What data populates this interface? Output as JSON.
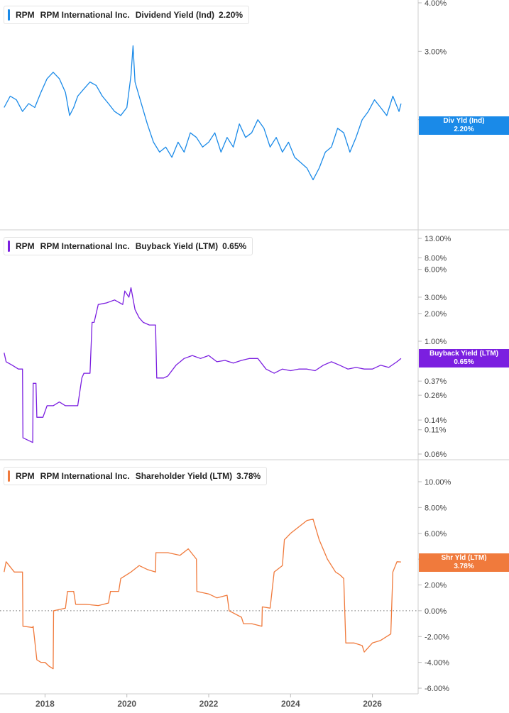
{
  "chart_data": [
    {
      "type": "line",
      "panel": "dividend",
      "ticker": "RPM",
      "company": "RPM International Inc.",
      "metric": "Dividend Yield (Ind)",
      "current_label": "2.20%",
      "tag_line1": "Div Yld (Ind)",
      "tag_line2": "2.20%",
      "color": "#1a8ae8",
      "y_scale": "log",
      "y_ticks": [
        {
          "v": 4.0,
          "label": "4.00%"
        },
        {
          "v": 3.0,
          "label": "3.00%"
        },
        {
          "v": 2.0,
          "label": "2.00%"
        }
      ],
      "ylim": [
        1.2,
        4.0
      ],
      "x": [
        2017.0,
        2017.15,
        2017.3,
        2017.45,
        2017.6,
        2017.75,
        2017.9,
        2018.05,
        2018.2,
        2018.35,
        2018.5,
        2018.6,
        2018.7,
        2018.8,
        2018.95,
        2019.1,
        2019.25,
        2019.4,
        2019.55,
        2019.7,
        2019.85,
        2020.0,
        2020.1,
        2020.15,
        2020.2,
        2020.3,
        2020.5,
        2020.65,
        2020.8,
        2020.95,
        2021.1,
        2021.25,
        2021.4,
        2021.55,
        2021.7,
        2021.85,
        2022.0,
        2022.15,
        2022.3,
        2022.45,
        2022.6,
        2022.75,
        2022.9,
        2023.05,
        2023.2,
        2023.35,
        2023.5,
        2023.65,
        2023.8,
        2023.95,
        2024.1,
        2024.25,
        2024.4,
        2024.55,
        2024.7,
        2024.85,
        2025.0,
        2025.15,
        2025.3,
        2025.45,
        2025.6,
        2025.75,
        2025.9,
        2026.05,
        2026.2,
        2026.35,
        2026.5,
        2026.65,
        2026.7
      ],
      "y": [
        2.15,
        2.3,
        2.25,
        2.1,
        2.2,
        2.15,
        2.35,
        2.55,
        2.65,
        2.55,
        2.35,
        2.05,
        2.15,
        2.3,
        2.4,
        2.5,
        2.45,
        2.3,
        2.2,
        2.1,
        2.05,
        2.15,
        2.6,
        3.1,
        2.5,
        2.3,
        1.95,
        1.75,
        1.65,
        1.7,
        1.6,
        1.75,
        1.65,
        1.85,
        1.8,
        1.7,
        1.75,
        1.85,
        1.65,
        1.8,
        1.7,
        1.95,
        1.8,
        1.85,
        2.0,
        1.9,
        1.7,
        1.8,
        1.65,
        1.75,
        1.6,
        1.55,
        1.5,
        1.4,
        1.5,
        1.65,
        1.7,
        1.9,
        1.85,
        1.65,
        1.8,
        2.0,
        2.1,
        2.25,
        2.15,
        2.05,
        2.3,
        2.1,
        2.2
      ]
    },
    {
      "type": "line",
      "panel": "buyback",
      "ticker": "RPM",
      "company": "RPM International Inc.",
      "metric": "Buyback Yield (LTM)",
      "current_label": "0.65%",
      "tag_line1": "Buyback Yield (LTM)",
      "tag_line2": "0.65%",
      "color": "#7b1fe0",
      "y_scale": "log",
      "y_ticks": [
        {
          "v": 13.0,
          "label": "13.00%"
        },
        {
          "v": 8.0,
          "label": "8.00%"
        },
        {
          "v": 6.0,
          "label": "6.00%"
        },
        {
          "v": 3.0,
          "label": "3.00%"
        },
        {
          "v": 2.0,
          "label": "2.00%"
        },
        {
          "v": 1.0,
          "label": "1.00%"
        },
        {
          "v": 0.37,
          "label": "0.37%"
        },
        {
          "v": 0.26,
          "label": "0.26%"
        },
        {
          "v": 0.14,
          "label": "0.14%"
        },
        {
          "v": 0.11,
          "label": "0.11%"
        },
        {
          "v": 0.06,
          "label": "0.06%"
        }
      ],
      "ylim": [
        0.06,
        13.0
      ],
      "x": [
        2017.0,
        2017.05,
        2017.2,
        2017.35,
        2017.45,
        2017.46,
        2017.7,
        2017.71,
        2017.78,
        2017.8,
        2017.95,
        2018.05,
        2018.2,
        2018.35,
        2018.5,
        2018.65,
        2018.8,
        2018.9,
        2018.95,
        2019.1,
        2019.15,
        2019.2,
        2019.3,
        2019.5,
        2019.7,
        2019.9,
        2019.95,
        2020.05,
        2020.1,
        2020.2,
        2020.3,
        2020.4,
        2020.55,
        2020.7,
        2020.73,
        2020.9,
        2021.0,
        2021.2,
        2021.4,
        2021.6,
        2021.8,
        2022.0,
        2022.2,
        2022.4,
        2022.6,
        2022.8,
        2023.0,
        2023.2,
        2023.4,
        2023.6,
        2023.8,
        2024.0,
        2024.2,
        2024.4,
        2024.6,
        2024.8,
        2025.0,
        2025.2,
        2025.4,
        2025.6,
        2025.8,
        2026.0,
        2026.2,
        2026.4,
        2026.6,
        2026.7
      ],
      "y": [
        0.75,
        0.6,
        0.55,
        0.5,
        0.5,
        0.09,
        0.08,
        0.35,
        0.35,
        0.15,
        0.15,
        0.2,
        0.2,
        0.22,
        0.2,
        0.2,
        0.2,
        0.4,
        0.45,
        0.45,
        1.6,
        1.6,
        2.5,
        2.6,
        2.8,
        2.5,
        3.5,
        3.0,
        3.8,
        2.2,
        1.8,
        1.6,
        1.5,
        1.5,
        0.4,
        0.4,
        0.42,
        0.55,
        0.65,
        0.7,
        0.65,
        0.7,
        0.6,
        0.62,
        0.58,
        0.62,
        0.65,
        0.65,
        0.5,
        0.45,
        0.5,
        0.48,
        0.5,
        0.5,
        0.48,
        0.55,
        0.6,
        0.55,
        0.5,
        0.52,
        0.5,
        0.5,
        0.55,
        0.52,
        0.6,
        0.65
      ]
    },
    {
      "type": "line",
      "panel": "shareholder",
      "ticker": "RPM",
      "company": "RPM International Inc.",
      "metric": "Shareholder Yield (LTM)",
      "current_label": "3.78%",
      "tag_line1": "Shr Yld (LTM)",
      "tag_line2": "3.78%",
      "color": "#f07a3c",
      "y_scale": "linear",
      "y_ticks": [
        {
          "v": 10.0,
          "label": "10.00%"
        },
        {
          "v": 8.0,
          "label": "8.00%"
        },
        {
          "v": 6.0,
          "label": "6.00%"
        },
        {
          "v": 4.0,
          "label": "4.00%"
        },
        {
          "v": 2.0,
          "label": "2.00%"
        },
        {
          "v": 0.0,
          "label": "0.00%"
        },
        {
          "v": -2.0,
          "label": "-2.00%"
        },
        {
          "v": -4.0,
          "label": "-4.00%"
        },
        {
          "v": -6.0,
          "label": "-6.00%"
        }
      ],
      "ylim": [
        -6.0,
        10.0
      ],
      "zero_line": true,
      "x": [
        2017.0,
        2017.05,
        2017.2,
        2017.25,
        2017.45,
        2017.46,
        2017.7,
        2017.71,
        2017.8,
        2017.9,
        2018.0,
        2018.1,
        2018.2,
        2018.21,
        2018.5,
        2018.55,
        2018.7,
        2018.75,
        2019.0,
        2019.3,
        2019.55,
        2019.6,
        2019.8,
        2019.85,
        2020.1,
        2020.3,
        2020.5,
        2020.7,
        2020.71,
        2021.0,
        2021.3,
        2021.5,
        2021.7,
        2021.71,
        2022.0,
        2022.2,
        2022.45,
        2022.5,
        2022.8,
        2022.85,
        2023.05,
        2023.3,
        2023.31,
        2023.5,
        2023.6,
        2023.8,
        2023.85,
        2024.0,
        2024.2,
        2024.4,
        2024.55,
        2024.7,
        2024.9,
        2025.1,
        2025.2,
        2025.3,
        2025.35,
        2025.55,
        2025.75,
        2025.8,
        2026.0,
        2026.2,
        2026.45,
        2026.5,
        2026.6,
        2026.7
      ],
      "y": [
        3.0,
        3.8,
        3.2,
        3.0,
        3.0,
        -1.2,
        -1.3,
        -1.2,
        -3.8,
        -4.0,
        -4.0,
        -4.3,
        -4.5,
        0.0,
        0.2,
        1.5,
        1.5,
        0.5,
        0.5,
        0.4,
        0.6,
        1.5,
        1.5,
        2.5,
        3.0,
        3.5,
        3.2,
        3.0,
        4.5,
        4.5,
        4.3,
        4.8,
        4.0,
        1.5,
        1.3,
        1.0,
        1.2,
        0.0,
        -0.5,
        -1.0,
        -1.0,
        -1.2,
        0.3,
        0.2,
        3.0,
        3.5,
        5.5,
        6.0,
        6.5,
        7.0,
        7.1,
        5.5,
        4.0,
        3.0,
        2.8,
        2.5,
        -2.5,
        -2.5,
        -2.7,
        -3.2,
        -2.5,
        -2.3,
        -1.8,
        3.0,
        3.8,
        3.78
      ]
    }
  ],
  "x_axis": {
    "ticks": [
      {
        "v": 2018,
        "label": "2018"
      },
      {
        "v": 2020,
        "label": "2020"
      },
      {
        "v": 2022,
        "label": "2022"
      },
      {
        "v": 2024,
        "label": "2024"
      },
      {
        "v": 2026,
        "label": "2026"
      }
    ],
    "range": [
      2016.9,
      2027.1
    ]
  }
}
